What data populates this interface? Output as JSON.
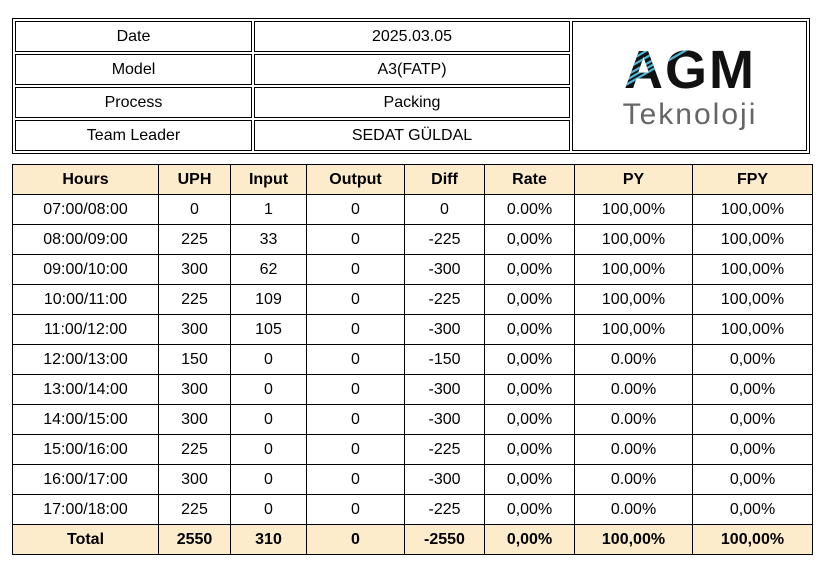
{
  "info": {
    "date_label": "Date",
    "date_value": "2025.03.05",
    "model_label": "Model",
    "model_value": "A3(FATP)",
    "process_label": "Process",
    "process_value": "Packing",
    "leader_label": "Team Leader",
    "leader_value": "SEDAT GÜLDAL"
  },
  "logo": {
    "title": "AGM",
    "subtitle": "Teknoloji",
    "colors": {
      "title": "#111111",
      "accent": "#4fb6d8",
      "subtitle": "#666666"
    }
  },
  "table": {
    "columns": [
      "Hours",
      "UPH",
      "Input",
      "Output",
      "Diff",
      "Rate",
      "PY",
      "FPY"
    ],
    "rows": [
      [
        "07:00/08:00",
        "0",
        "1",
        "0",
        "0",
        "0.00%",
        "100,00%",
        "100,00%"
      ],
      [
        "08:00/09:00",
        "225",
        "33",
        "0",
        "-225",
        "0,00%",
        "100,00%",
        "100,00%"
      ],
      [
        "09:00/10:00",
        "300",
        "62",
        "0",
        "-300",
        "0,00%",
        "100,00%",
        "100,00%"
      ],
      [
        "10:00/11:00",
        "225",
        "109",
        "0",
        "-225",
        "0,00%",
        "100,00%",
        "100,00%"
      ],
      [
        "11:00/12:00",
        "300",
        "105",
        "0",
        "-300",
        "0,00%",
        "100,00%",
        "100,00%"
      ],
      [
        "12:00/13:00",
        "150",
        "0",
        "0",
        "-150",
        "0,00%",
        "0.00%",
        "0,00%"
      ],
      [
        "13:00/14:00",
        "300",
        "0",
        "0",
        "-300",
        "0,00%",
        "0.00%",
        "0,00%"
      ],
      [
        "14:00/15:00",
        "300",
        "0",
        "0",
        "-300",
        "0,00%",
        "0.00%",
        "0,00%"
      ],
      [
        "15:00/16:00",
        "225",
        "0",
        "0",
        "-225",
        "0,00%",
        "0.00%",
        "0,00%"
      ],
      [
        "16:00/17:00",
        "300",
        "0",
        "0",
        "-300",
        "0,00%",
        "0.00%",
        "0,00%"
      ],
      [
        "17:00/18:00",
        "225",
        "0",
        "0",
        "-225",
        "0,00%",
        "0.00%",
        "0,00%"
      ]
    ],
    "total": [
      "Total",
      "2550",
      "310",
      "0",
      "-2550",
      "0,00%",
      "100,00%",
      "100,00%"
    ]
  },
  "colors": {
    "header_fill": "#fdeccb"
  }
}
